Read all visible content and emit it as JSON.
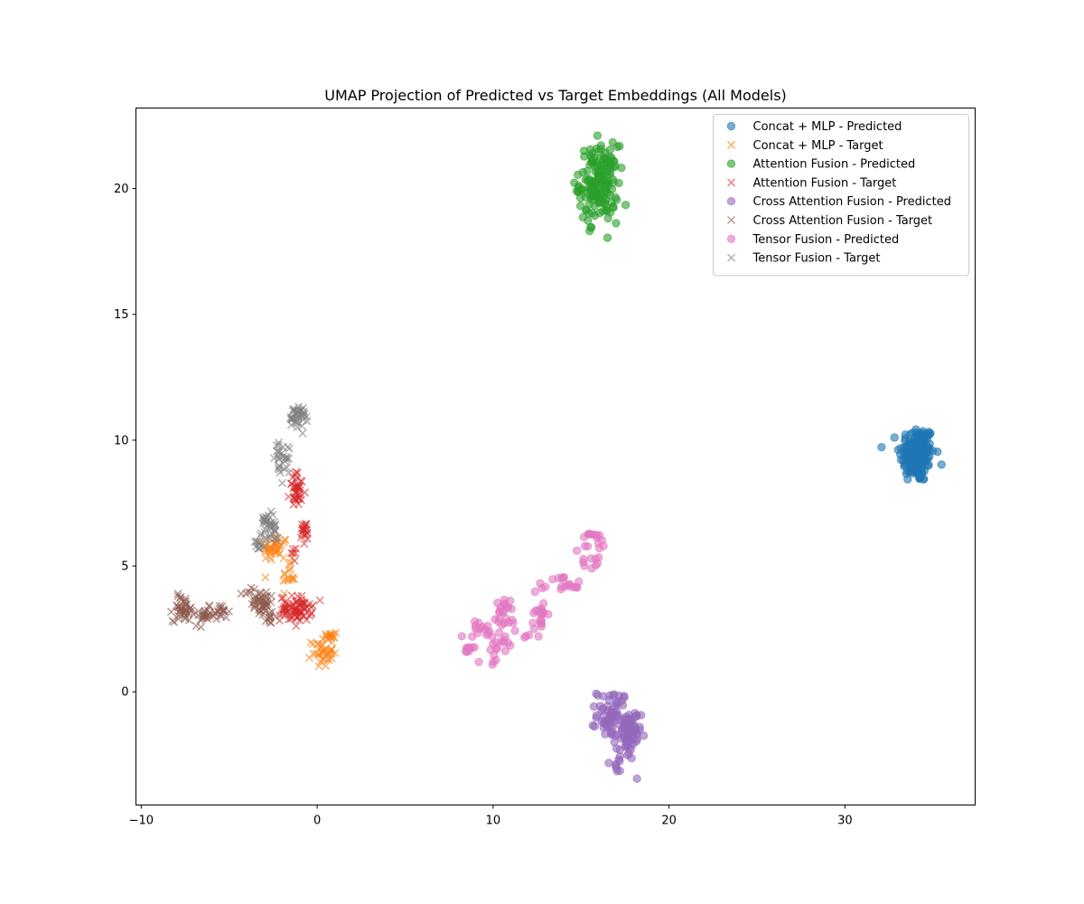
{
  "chart_data": {
    "type": "scatter",
    "title": "UMAP Projection of Predicted vs Target Embeddings (All Models)",
    "xlabel": "",
    "ylabel": "",
    "xlim": [
      -10.3,
      37.4
    ],
    "ylim": [
      -4.5,
      23.2
    ],
    "xticks": [
      -10,
      0,
      10,
      20,
      30
    ],
    "yticks": [
      0,
      5,
      10,
      15,
      20
    ],
    "grid": false,
    "legend_position": "top-right",
    "series": [
      {
        "name": "Concat + MLP - Predicted",
        "marker": "o",
        "color": "#1f77b4",
        "clusters": [
          {
            "cx": 34.1,
            "cy": 9.45,
            "rx": 1.0,
            "ry": 1.15,
            "n": 170
          }
        ]
      },
      {
        "name": "Concat + MLP - Target",
        "marker": "x",
        "color": "#ff7f0e",
        "clusters": [
          {
            "cx": -2.4,
            "cy": 5.7,
            "rx": 0.7,
            "ry": 0.55,
            "n": 40
          },
          {
            "cx": -1.6,
            "cy": 4.6,
            "rx": 0.35,
            "ry": 0.6,
            "n": 16
          },
          {
            "cx": 0.3,
            "cy": 1.6,
            "rx": 0.6,
            "ry": 0.6,
            "n": 40
          },
          {
            "cx": 0.8,
            "cy": 2.2,
            "rx": 0.35,
            "ry": 0.3,
            "n": 12
          }
        ]
      },
      {
        "name": "Attention Fusion - Predicted",
        "marker": "o",
        "color": "#2ca02c",
        "clusters": [
          {
            "cx": 16.0,
            "cy": 20.2,
            "rx": 1.1,
            "ry": 1.5,
            "n": 170
          }
        ]
      },
      {
        "name": "Attention Fusion - Target",
        "marker": "x",
        "color": "#d62728",
        "clusters": [
          {
            "cx": -1.1,
            "cy": 8.0,
            "rx": 0.45,
            "ry": 0.7,
            "n": 40
          },
          {
            "cx": -0.7,
            "cy": 6.3,
            "rx": 0.3,
            "ry": 0.5,
            "n": 20
          },
          {
            "cx": -1.2,
            "cy": 3.3,
            "rx": 0.9,
            "ry": 0.5,
            "n": 75
          },
          {
            "cx": -1.3,
            "cy": 5.5,
            "rx": 0.2,
            "ry": 0.3,
            "n": 6
          }
        ]
      },
      {
        "name": "Cross Attention Fusion - Predicted",
        "marker": "o",
        "color": "#9467bd",
        "clusters": [
          {
            "cx": 16.8,
            "cy": -0.9,
            "rx": 0.9,
            "ry": 1.0,
            "n": 70
          },
          {
            "cx": 17.7,
            "cy": -1.8,
            "rx": 0.7,
            "ry": 1.1,
            "n": 60
          },
          {
            "cx": 17.1,
            "cy": -2.9,
            "rx": 0.3,
            "ry": 0.3,
            "n": 8
          }
        ]
      },
      {
        "name": "Cross Attention Fusion - Target",
        "marker": "x",
        "color": "#8c564b",
        "clusters": [
          {
            "cx": -7.6,
            "cy": 3.3,
            "rx": 0.6,
            "ry": 0.5,
            "n": 45
          },
          {
            "cx": -6.4,
            "cy": 3.0,
            "rx": 0.6,
            "ry": 0.35,
            "n": 25
          },
          {
            "cx": -5.4,
            "cy": 3.2,
            "rx": 0.35,
            "ry": 0.3,
            "n": 15
          },
          {
            "cx": -3.3,
            "cy": 3.6,
            "rx": 0.8,
            "ry": 0.6,
            "n": 50
          },
          {
            "cx": -2.7,
            "cy": 2.9,
            "rx": 0.3,
            "ry": 0.3,
            "n": 10
          }
        ]
      },
      {
        "name": "Tensor Fusion - Predicted",
        "marker": "o",
        "color": "#e377c2",
        "arc": [
          [
            9.2,
            0.9
          ],
          [
            8.6,
            1.4
          ],
          [
            8.5,
            2.1
          ],
          [
            9.0,
            2.7
          ],
          [
            9.8,
            2.4
          ],
          [
            10.0,
            1.7
          ],
          [
            9.8,
            1.1
          ],
          [
            10.4,
            1.6
          ],
          [
            10.9,
            2.0
          ],
          [
            10.4,
            2.9
          ],
          [
            10.4,
            3.5
          ],
          [
            10.8,
            3.4
          ],
          [
            12.0,
            2.1
          ],
          [
            12.5,
            2.6
          ],
          [
            12.6,
            3.3
          ],
          [
            12.8,
            2.9
          ],
          [
            12.6,
            3.8
          ],
          [
            12.9,
            4.3
          ],
          [
            13.5,
            4.6
          ],
          [
            14.2,
            4.4
          ],
          [
            14.4,
            4.1
          ],
          [
            15.1,
            4.9
          ],
          [
            15.2,
            5.5
          ],
          [
            15.4,
            6.3
          ],
          [
            15.9,
            6.1
          ],
          [
            16.2,
            5.9
          ],
          [
            15.8,
            5.3
          ],
          [
            15.3,
            5.1
          ]
        ],
        "spread": 0.18,
        "n": 130
      },
      {
        "name": "Tensor Fusion - Target",
        "marker": "x",
        "color": "#7f7f7f",
        "clusters": [
          {
            "cx": -1.1,
            "cy": 11.0,
            "rx": 0.5,
            "ry": 0.6,
            "n": 40
          },
          {
            "cx": -2.0,
            "cy": 9.3,
            "rx": 0.5,
            "ry": 0.75,
            "n": 30
          },
          {
            "cx": -2.7,
            "cy": 6.6,
            "rx": 0.5,
            "ry": 0.7,
            "n": 40
          },
          {
            "cx": -3.2,
            "cy": 5.9,
            "rx": 0.5,
            "ry": 0.25,
            "n": 12
          }
        ]
      }
    ]
  }
}
